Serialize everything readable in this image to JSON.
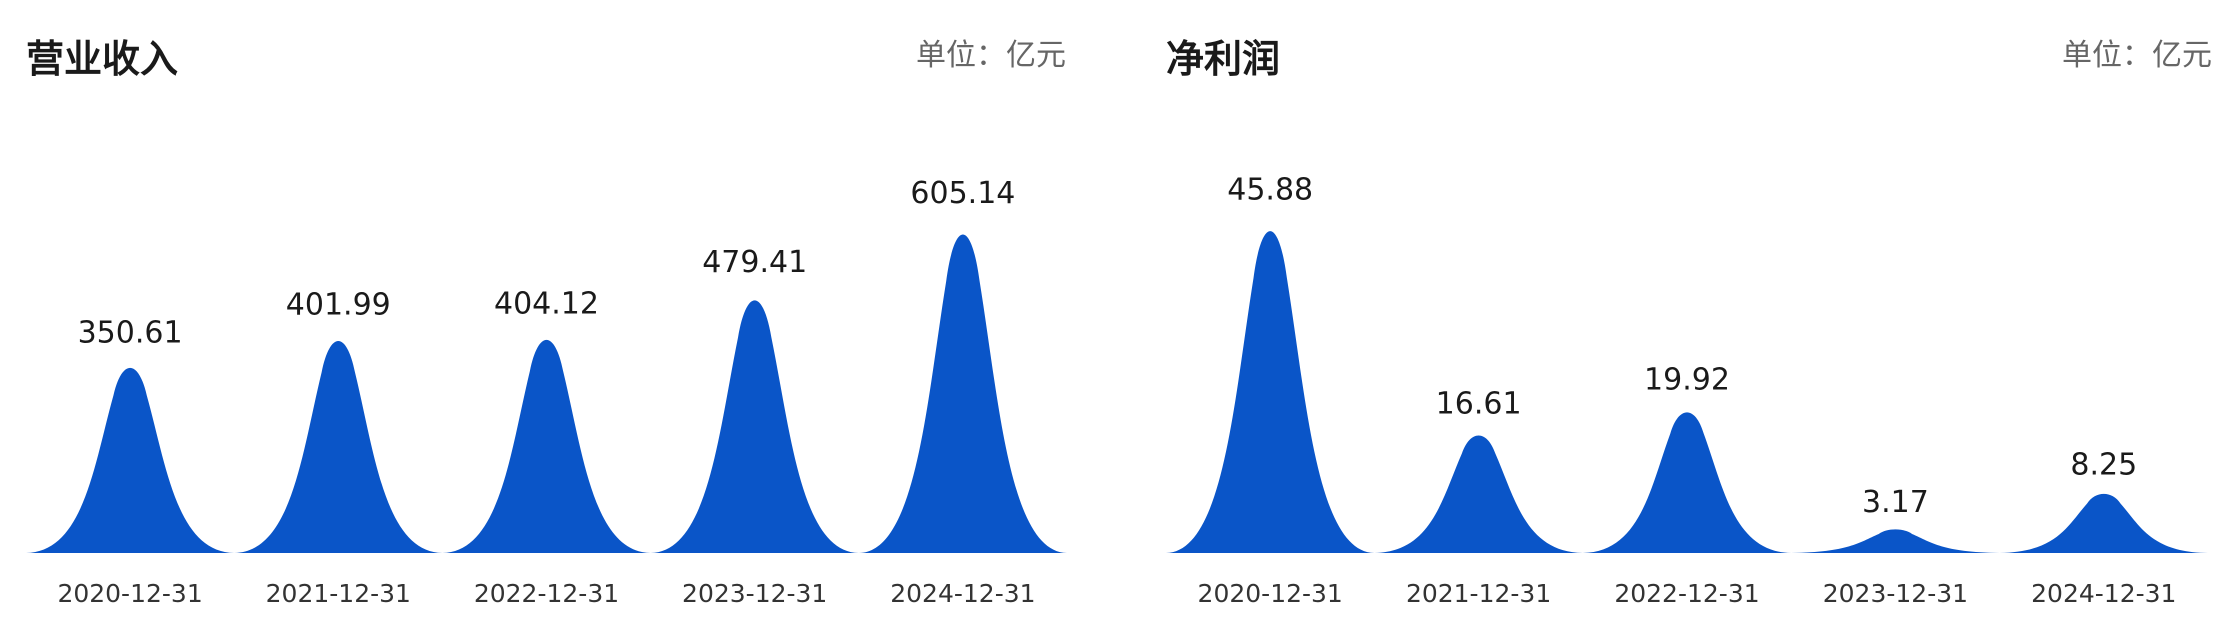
{
  "chart_data": [
    {
      "type": "bar",
      "title": "营业收入",
      "unit_label": "单位：亿元",
      "categories": [
        "2020-12-31",
        "2021-12-31",
        "2022-12-31",
        "2023-12-31",
        "2024-12-31"
      ],
      "values": [
        350.61,
        401.99,
        404.12,
        479.41,
        605.14
      ],
      "value_labels": [
        "350.61",
        "401.99",
        "404.12",
        "479.41",
        "605.14"
      ],
      "ylim": [
        0,
        640
      ],
      "grid": false,
      "color": "#0a55c8"
    },
    {
      "type": "bar",
      "title": "净利润",
      "unit_label": "单位：亿元",
      "categories": [
        "2020-12-31",
        "2021-12-31",
        "2022-12-31",
        "2023-12-31",
        "2024-12-31"
      ],
      "values": [
        45.88,
        16.61,
        19.92,
        3.17,
        8.25
      ],
      "value_labels": [
        "45.88",
        "16.61",
        "19.92",
        "3.17",
        "8.25"
      ],
      "ylim": [
        0,
        48
      ],
      "grid": false,
      "color": "#0a55c8"
    }
  ]
}
